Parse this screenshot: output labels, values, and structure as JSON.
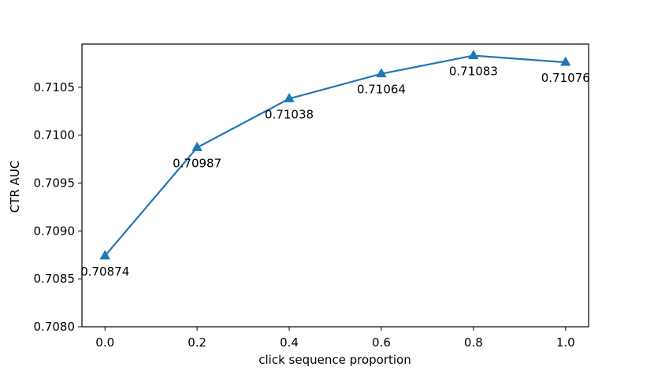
{
  "chart_data": {
    "type": "line",
    "title": "",
    "xlabel": "click sequence proportion",
    "ylabel": "CTR AUC",
    "xlim": [
      -0.05,
      1.05
    ],
    "ylim": [
      0.708,
      0.71095
    ],
    "x_ticks": [
      0.0,
      0.2,
      0.4,
      0.6,
      0.8,
      1.0
    ],
    "x_tick_labels": [
      "0.0",
      "0.2",
      "0.4",
      "0.6",
      "0.8",
      "1.0"
    ],
    "y_ticks": [
      0.708,
      0.7085,
      0.709,
      0.7095,
      0.71,
      0.7105
    ],
    "y_tick_labels": [
      "0.7080",
      "0.7085",
      "0.7090",
      "0.7095",
      "0.7100",
      "0.7105"
    ],
    "grid": false,
    "legend": "none",
    "series": [
      {
        "color": "#1f77b4",
        "marker": "triangle-up",
        "x": [
          0.0,
          0.2,
          0.4,
          0.6,
          0.8,
          1.0
        ],
        "y": [
          0.70874,
          0.70987,
          0.71038,
          0.71064,
          0.71083,
          0.71076
        ],
        "data_labels": [
          "0.70874",
          "0.70987",
          "0.71038",
          "0.71064",
          "0.71083",
          "0.71076"
        ]
      }
    ]
  }
}
